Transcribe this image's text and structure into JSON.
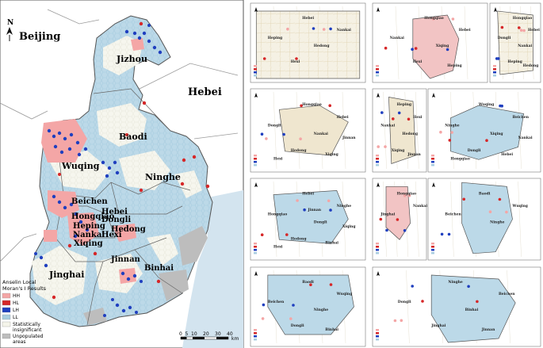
{
  "main_map": {
    "north_label": "N",
    "places": {
      "beijing": "Beijing",
      "hebei": "Hebei",
      "jizhou": "Jizhou",
      "baodi": "Baodi",
      "wuqing": "Wuqing",
      "ninghe": "Ninghe",
      "beichen": "Beichen",
      "hongqiao": "Hongqiao",
      "hebei_district": "Hebei",
      "dongli": "Dongli",
      "heping": "Heping",
      "hedong": "Hedong",
      "nankai": "Nankai",
      "hexi": "Hexi",
      "xiqing": "Xiqing",
      "jinnan": "Jinnan",
      "jinghai": "Jinghai",
      "binhai": "Binhai"
    },
    "legend": {
      "title_line1": "Anselin Local",
      "title_line2": "Moran's I Results",
      "items": [
        {
          "label": "HH",
          "color": "#f4a6a6"
        },
        {
          "label": "HL",
          "color": "#d62728"
        },
        {
          "label": "LH",
          "color": "#1f3fbf"
        },
        {
          "label": "LL",
          "color": "#a9cde0"
        },
        {
          "label": "Statistically insignificant",
          "color": "#f4f4ea"
        },
        {
          "label": "Unpopulated areas",
          "color": "#bdbdbd"
        }
      ]
    },
    "scale_bar": {
      "ticks": [
        "0",
        "5",
        "10",
        "20",
        "30",
        "40"
      ],
      "unit": "km"
    }
  },
  "panels": [
    {
      "id": "heping",
      "labels": [
        "Hebei",
        "Nankai",
        "Heping",
        "Hedong",
        "Hexi"
      ]
    },
    {
      "id": "nankai",
      "labels": [
        "Hongqiao",
        "Hebei",
        "Nankai",
        "Xiqing",
        "Hexi",
        "Heping"
      ]
    },
    {
      "id": "hebei",
      "labels": [
        "Hongqiao",
        "Hebei",
        "Dongli",
        "Nankai",
        "Heping",
        "Hedong"
      ]
    },
    {
      "id": "hedong",
      "labels": [
        "Hongqiao",
        "Hebei",
        "Dongli",
        "Nankai",
        "Hedong",
        "Xiqing",
        "Hexi",
        "Jinnan"
      ]
    },
    {
      "id": "hexi",
      "labels": [
        "Heping",
        "Hexi",
        "Nankai",
        "Hedong",
        "Xiqing",
        "Jinnan"
      ]
    },
    {
      "id": "beichen",
      "labels": [
        "Wuqing",
        "Beichen",
        "Ninghe",
        "Xiqing",
        "Dongli",
        "Hebei",
        "Hongqiao",
        "Nankai"
      ]
    },
    {
      "id": "dongli",
      "labels": [
        "Hebei",
        "Ninghe",
        "Hongqiao",
        "Dongli",
        "Hedong",
        "Binhai",
        "Hexi",
        "Xiqing",
        "Jinnan"
      ]
    },
    {
      "id": "xiqing",
      "labels": [
        "Hongqiao",
        "Nankai",
        "Jinghai"
      ]
    },
    {
      "id": "wuqing",
      "labels": [
        "Baodi",
        "Wuqing",
        "Beichen",
        "Ninghe"
      ]
    },
    {
      "id": "ninghe",
      "labels": [
        "Baodi",
        "Wuqing",
        "Beichen",
        "Ninghe",
        "Dongli",
        "Binhai"
      ]
    },
    {
      "id": "binhai",
      "labels": [
        "Ninghe",
        "Beichen",
        "Dongli",
        "Binhai",
        "Jinghai",
        "Jinnan"
      ]
    }
  ]
}
